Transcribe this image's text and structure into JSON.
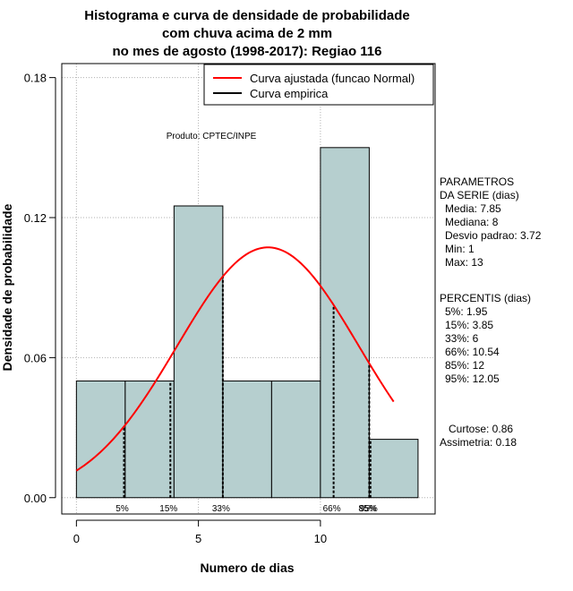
{
  "chart_data": {
    "type": "bar",
    "title_lines": [
      "Histograma e curva de densidade de probabilidade",
      "com chuva acima de 2 mm",
      "no mes de agosto (1998-2017): Regiao 116"
    ],
    "xlabel": "Numero de dias",
    "ylabel": "Densidade de probabilidade",
    "xlim": [
      -0.6,
      14.7
    ],
    "ylim": [
      -0.007,
      0.186
    ],
    "x_ticks": [
      0,
      5,
      10
    ],
    "y_ticks": [
      0.0,
      0.06,
      0.12,
      0.18
    ],
    "y_tick_labels": [
      "0.00",
      "0.06",
      "0.12",
      "0.18"
    ],
    "bins": [
      {
        "start": 0,
        "end": 2,
        "density": 0.05
      },
      {
        "start": 2,
        "end": 4,
        "density": 0.05
      },
      {
        "start": 4,
        "end": 6,
        "density": 0.125
      },
      {
        "start": 6,
        "end": 8,
        "density": 0.05
      },
      {
        "start": 8,
        "end": 10,
        "density": 0.05
      },
      {
        "start": 10,
        "end": 12,
        "density": 0.15
      },
      {
        "start": 12,
        "end": 14,
        "density": 0.025
      }
    ],
    "normal_fit": {
      "mean": 7.85,
      "sd": 3.72,
      "x_from": 0,
      "x_to": 13
    },
    "legend": [
      {
        "label": "Curva ajustada (funcao Normal)",
        "color": "#ff0000"
      },
      {
        "label": "Curva empirica",
        "color": "#000000"
      }
    ],
    "percentile_lines": [
      {
        "label": "5%",
        "x": 1.95
      },
      {
        "label": "15%",
        "x": 3.85
      },
      {
        "label": "33%",
        "x": 6
      },
      {
        "label": "66%",
        "x": 10.54
      },
      {
        "label": "85%",
        "x": 12
      },
      {
        "label": "95%",
        "x": 12.05
      }
    ],
    "product_label": "Produto: CPTEC/INPE",
    "colors": {
      "bar_fill": "#b6cfcf",
      "curve": "#ff0000",
      "grid": "#b0b0b0"
    }
  },
  "side_panel": {
    "params_title": [
      "PARAMETROS",
      "DA SERIE (dias)"
    ],
    "params": [
      "Media: 7.85",
      "Mediana: 8",
      "Desvio padrao: 3.72",
      "Min: 1",
      "Max: 13"
    ],
    "percentis_title": "PERCENTIS (dias)",
    "percentis": [
      "5%: 1.95",
      "15%: 3.85",
      "33%: 6",
      "66%: 10.54",
      "85%: 12",
      "95%: 12.05"
    ],
    "extra": [
      "Curtose: 0.86",
      "Assimetria: 0.18"
    ]
  }
}
